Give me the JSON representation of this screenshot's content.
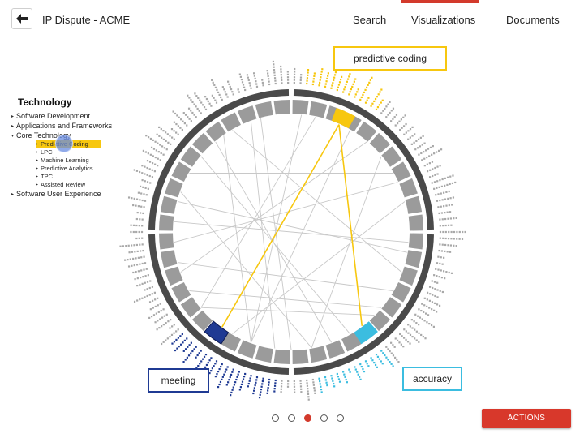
{
  "header": {
    "back_icon": "arrow-left-icon",
    "title": "IP Dispute - ACME",
    "nav": [
      {
        "label": "Search",
        "active": false
      },
      {
        "label": "Visualizations",
        "active": true
      },
      {
        "label": "Documents",
        "active": false
      }
    ],
    "accent_color": "#d33a2c"
  },
  "sidebar": {
    "title": "Technology",
    "items": [
      {
        "label": "Software Development",
        "expanded": false
      },
      {
        "label": "Applications and Frameworks",
        "expanded": false
      },
      {
        "label": "Core Technology",
        "expanded": true
      },
      {
        "label": "Software User Experience",
        "expanded": false
      }
    ],
    "subitems": [
      {
        "label": "Predictive Coding",
        "selected": true
      },
      {
        "label": "LPC",
        "selected": false
      },
      {
        "label": "Machine Learning",
        "selected": false
      },
      {
        "label": "Predictive Analytics",
        "selected": false
      },
      {
        "label": "TPC",
        "selected": false
      },
      {
        "label": "Assisted Review",
        "selected": false
      }
    ],
    "highlight_color": "#f7c70f"
  },
  "visualization": {
    "callouts": [
      {
        "label": "predictive coding",
        "color": "#f7c70f"
      },
      {
        "label": "meeting",
        "color": "#1f3a93"
      },
      {
        "label": "accuracy",
        "color": "#3bbde0"
      }
    ]
  },
  "pagination": {
    "count": 5,
    "active_index": 2
  },
  "actions": {
    "label": "ACTIONS",
    "color": "#d8382b"
  }
}
